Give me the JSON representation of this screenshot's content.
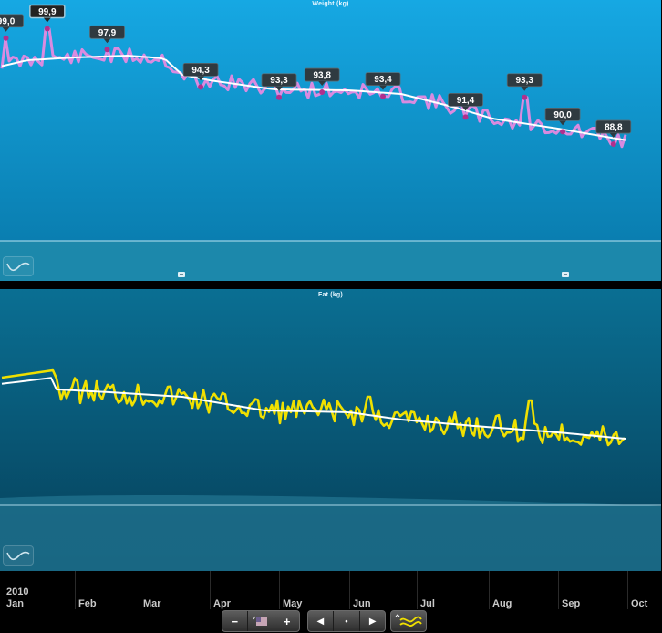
{
  "weight_panel": {
    "title": "Weight (kg)",
    "line_color": "#e58ae0",
    "trend_color": "#ffffff",
    "marker_color": "#b0308d",
    "labels": [
      {
        "date": "2010-01-02",
        "value": "99,0",
        "kg": 99.0
      },
      {
        "date": "2010-01-20",
        "value": "99,9",
        "kg": 99.9
      },
      {
        "date": "2010-02-15",
        "value": "97,9",
        "kg": 97.9
      },
      {
        "date": "2010-03-28",
        "value": "94,3",
        "kg": 94.3
      },
      {
        "date": "2010-05-01",
        "value": "93,3",
        "kg": 93.3
      },
      {
        "date": "2010-05-20",
        "value": "93,8",
        "kg": 93.8
      },
      {
        "date": "2010-06-16",
        "value": "93,4",
        "kg": 93.4
      },
      {
        "date": "2010-07-22",
        "value": "91,4",
        "kg": 91.4
      },
      {
        "date": "2010-08-17",
        "value": "93,3",
        "kg": 93.3
      },
      {
        "date": "2010-09-03",
        "value": "90,0",
        "kg": 90.0
      },
      {
        "date": "2010-09-25",
        "value": "88,8",
        "kg": 88.8
      }
    ]
  },
  "fat_panel": {
    "title": "Fat (kg)",
    "line_color": "#f0e000",
    "trend_color": "#ffffff"
  },
  "timeline": {
    "year": "2010",
    "months": [
      "Jan",
      "Feb",
      "Mar",
      "Apr",
      "May",
      "Jun",
      "Jul",
      "Aug",
      "Sep",
      "Oct"
    ]
  },
  "toolbar": {
    "zoom_out": "−",
    "zoom_in": "+",
    "prev": "◀",
    "dot": "•",
    "next": "▶"
  },
  "icons": [
    "smooth-wave-icon",
    "comment-icon",
    "flag-icon",
    "minus-icon",
    "plus-icon",
    "arrow-left-icon",
    "arrow-right-icon",
    "trend-icon"
  ]
}
